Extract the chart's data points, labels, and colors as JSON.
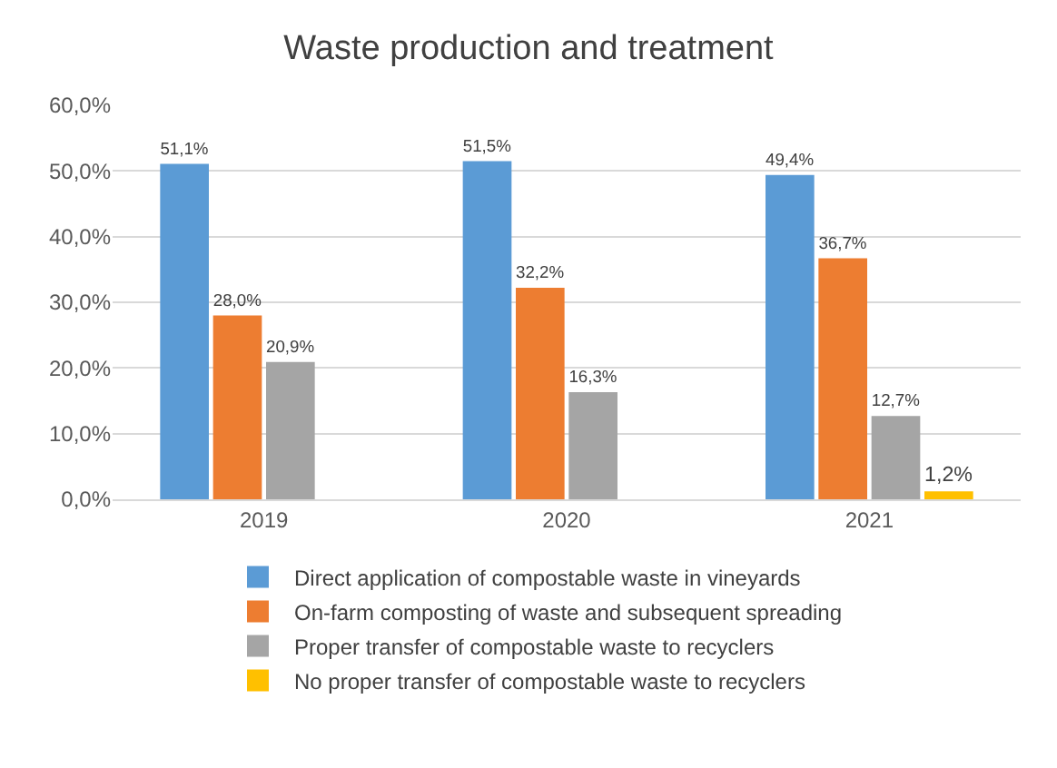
{
  "chart_data": {
    "type": "bar",
    "title": "Waste production and treatment",
    "categories": [
      "2019",
      "2020",
      "2021"
    ],
    "series": [
      {
        "name": "Direct application of compostable waste in vineyards",
        "color": "#5b9bd5",
        "values": [
          51.1,
          51.5,
          49.4
        ],
        "value_labels": [
          "51,1%",
          "51,5%",
          "49,4%"
        ]
      },
      {
        "name": "On-farm composting of waste and subsequent spreading",
        "color": "#ed7d31",
        "values": [
          28.0,
          32.2,
          36.7
        ],
        "value_labels": [
          "28,0%",
          "32,2%",
          "36,7%"
        ]
      },
      {
        "name": "Proper transfer of compostable waste to recyclers",
        "color": "#a5a5a5",
        "values": [
          20.9,
          16.3,
          12.7
        ],
        "value_labels": [
          "20,9%",
          "16,3%",
          "12,7%"
        ]
      },
      {
        "name": "No proper transfer of compostable waste to recyclers",
        "color": "#ffc000",
        "values": [
          null,
          null,
          1.2
        ],
        "value_labels": [
          null,
          null,
          "1,2%"
        ]
      }
    ],
    "ylim": [
      0,
      60
    ],
    "yticks": [
      {
        "value": 0,
        "label": "0,0%"
      },
      {
        "value": 10,
        "label": "10,0%"
      },
      {
        "value": 20,
        "label": "20,0%"
      },
      {
        "value": 30,
        "label": "30,0%"
      },
      {
        "value": 40,
        "label": "40,0%"
      },
      {
        "value": 50,
        "label": "50,0%"
      },
      {
        "value": 60,
        "label": "60,0%"
      }
    ],
    "grid": "y",
    "legend": "bottom"
  }
}
